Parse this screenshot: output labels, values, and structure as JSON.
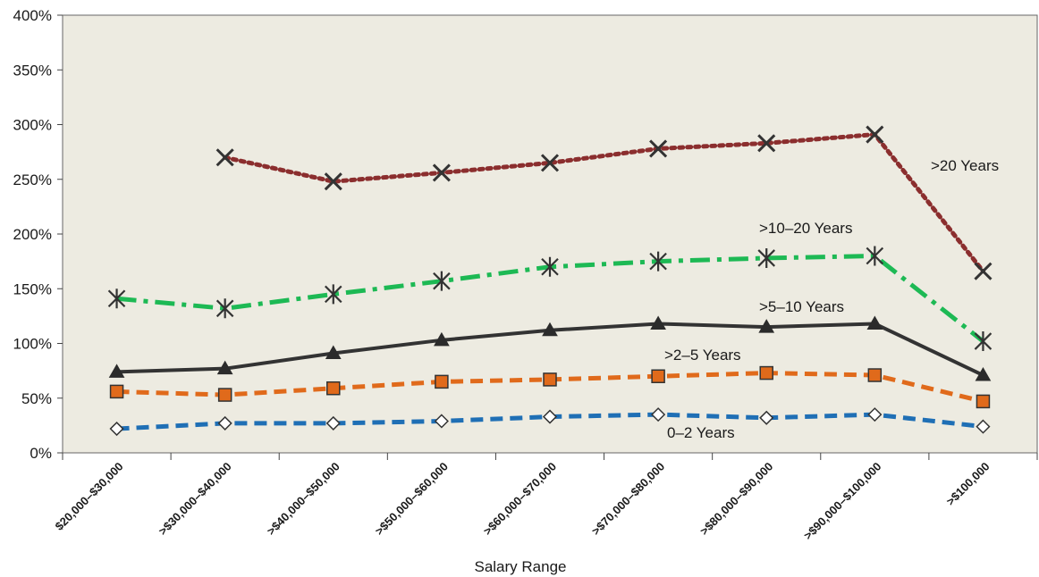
{
  "chart_data": {
    "type": "line",
    "title": "",
    "xlabel": "Salary Range",
    "ylabel": "",
    "ylim": [
      0,
      400
    ],
    "yticks": [
      0,
      50,
      100,
      150,
      200,
      250,
      300,
      350,
      400
    ],
    "ytick_suffix": "%",
    "grid": false,
    "legend": "none (series labeled inline)",
    "plot_background": "#EDEBE1",
    "categories": [
      "$20,000–$30,000",
      ">$30,000–$40,000",
      ">$40,000–$50,000",
      ">$50,000–$60,000",
      ">$60,000–$70,000",
      ">$70,000–$80,000",
      ">$80,000–$90,000",
      ">$90,000–$100,000",
      ">$100,000"
    ],
    "series": [
      {
        "name": "0–2 Years",
        "color": "#1F6FB5",
        "dash": "dashed",
        "marker": "diamond-open",
        "values": [
          22,
          27,
          27,
          29,
          33,
          35,
          32,
          35,
          24
        ]
      },
      {
        "name": ">2–5 Years",
        "color": "#E06A1B",
        "dash": "dashed",
        "marker": "square",
        "values": [
          56,
          53,
          59,
          65,
          67,
          70,
          73,
          71,
          47
        ]
      },
      {
        "name": ">5–10 Years",
        "color": "#333333",
        "dash": "solid",
        "marker": "triangle",
        "values": [
          74,
          77,
          91,
          103,
          112,
          118,
          115,
          118,
          71
        ]
      },
      {
        "name": ">10–20 Years",
        "color": "#1DB954",
        "dash": "dash-dot",
        "marker": "star",
        "values": [
          141,
          132,
          145,
          157,
          170,
          175,
          178,
          180,
          102
        ]
      },
      {
        "name": ">20 Years",
        "color": "#8B2E2E",
        "dash": "dotted",
        "marker": "x",
        "values": [
          null,
          270,
          248,
          256,
          265,
          278,
          283,
          291,
          166
        ]
      }
    ]
  }
}
